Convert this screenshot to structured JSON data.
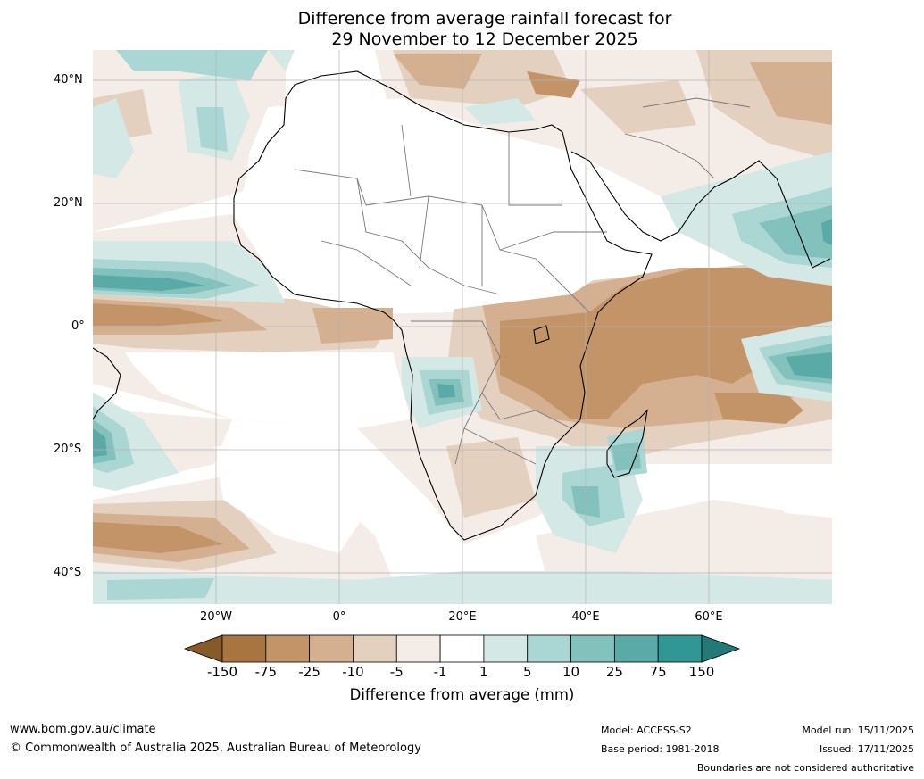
{
  "title_line1": "Difference from average rainfall forecast for",
  "title_line2": "29 November to 12 December 2025",
  "latitude_labels": [
    "40°N",
    "20°N",
    "0°",
    "20°S",
    "40°S"
  ],
  "longitude_labels": [
    "20°W",
    "0°",
    "20°E",
    "40°E",
    "60°E"
  ],
  "colorbar": {
    "ticks": [
      "-150",
      "-75",
      "-25",
      "-10",
      "-5",
      "-1",
      "1",
      "5",
      "10",
      "25",
      "75",
      "150"
    ],
    "colors": [
      "#875a2a",
      "#a87440",
      "#c29468",
      "#d4b090",
      "#e4d0be",
      "#f4ece6",
      "#ffffff",
      "#d4e8e6",
      "#aad6d3",
      "#83c1bd",
      "#5aaaa7",
      "#319794",
      "#237976"
    ],
    "label": "Difference from average (mm)"
  },
  "footer": {
    "url": "www.bom.gov.au/climate",
    "copyright": "© Commonwealth of Australia 2025, Australian Bureau of Meteorology",
    "model": "Model: ACCESS-S2",
    "base_period": "Base period: 1981-2018",
    "model_run": "Model run: 15/11/2025",
    "issued": "Issued: 17/11/2025",
    "disclaimer": "Boundaries are not considered authoritative"
  }
}
